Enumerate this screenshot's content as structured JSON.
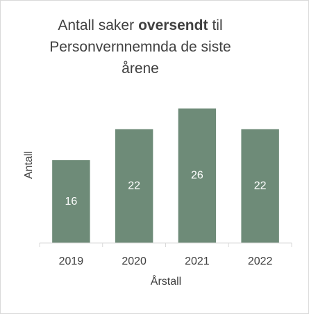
{
  "chart_data": {
    "type": "bar",
    "title": [
      [
        "Antall saker",
        "oversendt",
        "til"
      ],
      [
        "Personvernnemnda de siste"
      ],
      [
        "årene"
      ]
    ],
    "x_label": "Årstall",
    "y_label": "Antall",
    "categories": [
      "2019",
      "2020",
      "2021",
      "2022"
    ],
    "values": [
      16,
      22,
      26,
      22
    ],
    "color": "#6e8b78",
    "ylim": [
      0,
      30
    ]
  }
}
